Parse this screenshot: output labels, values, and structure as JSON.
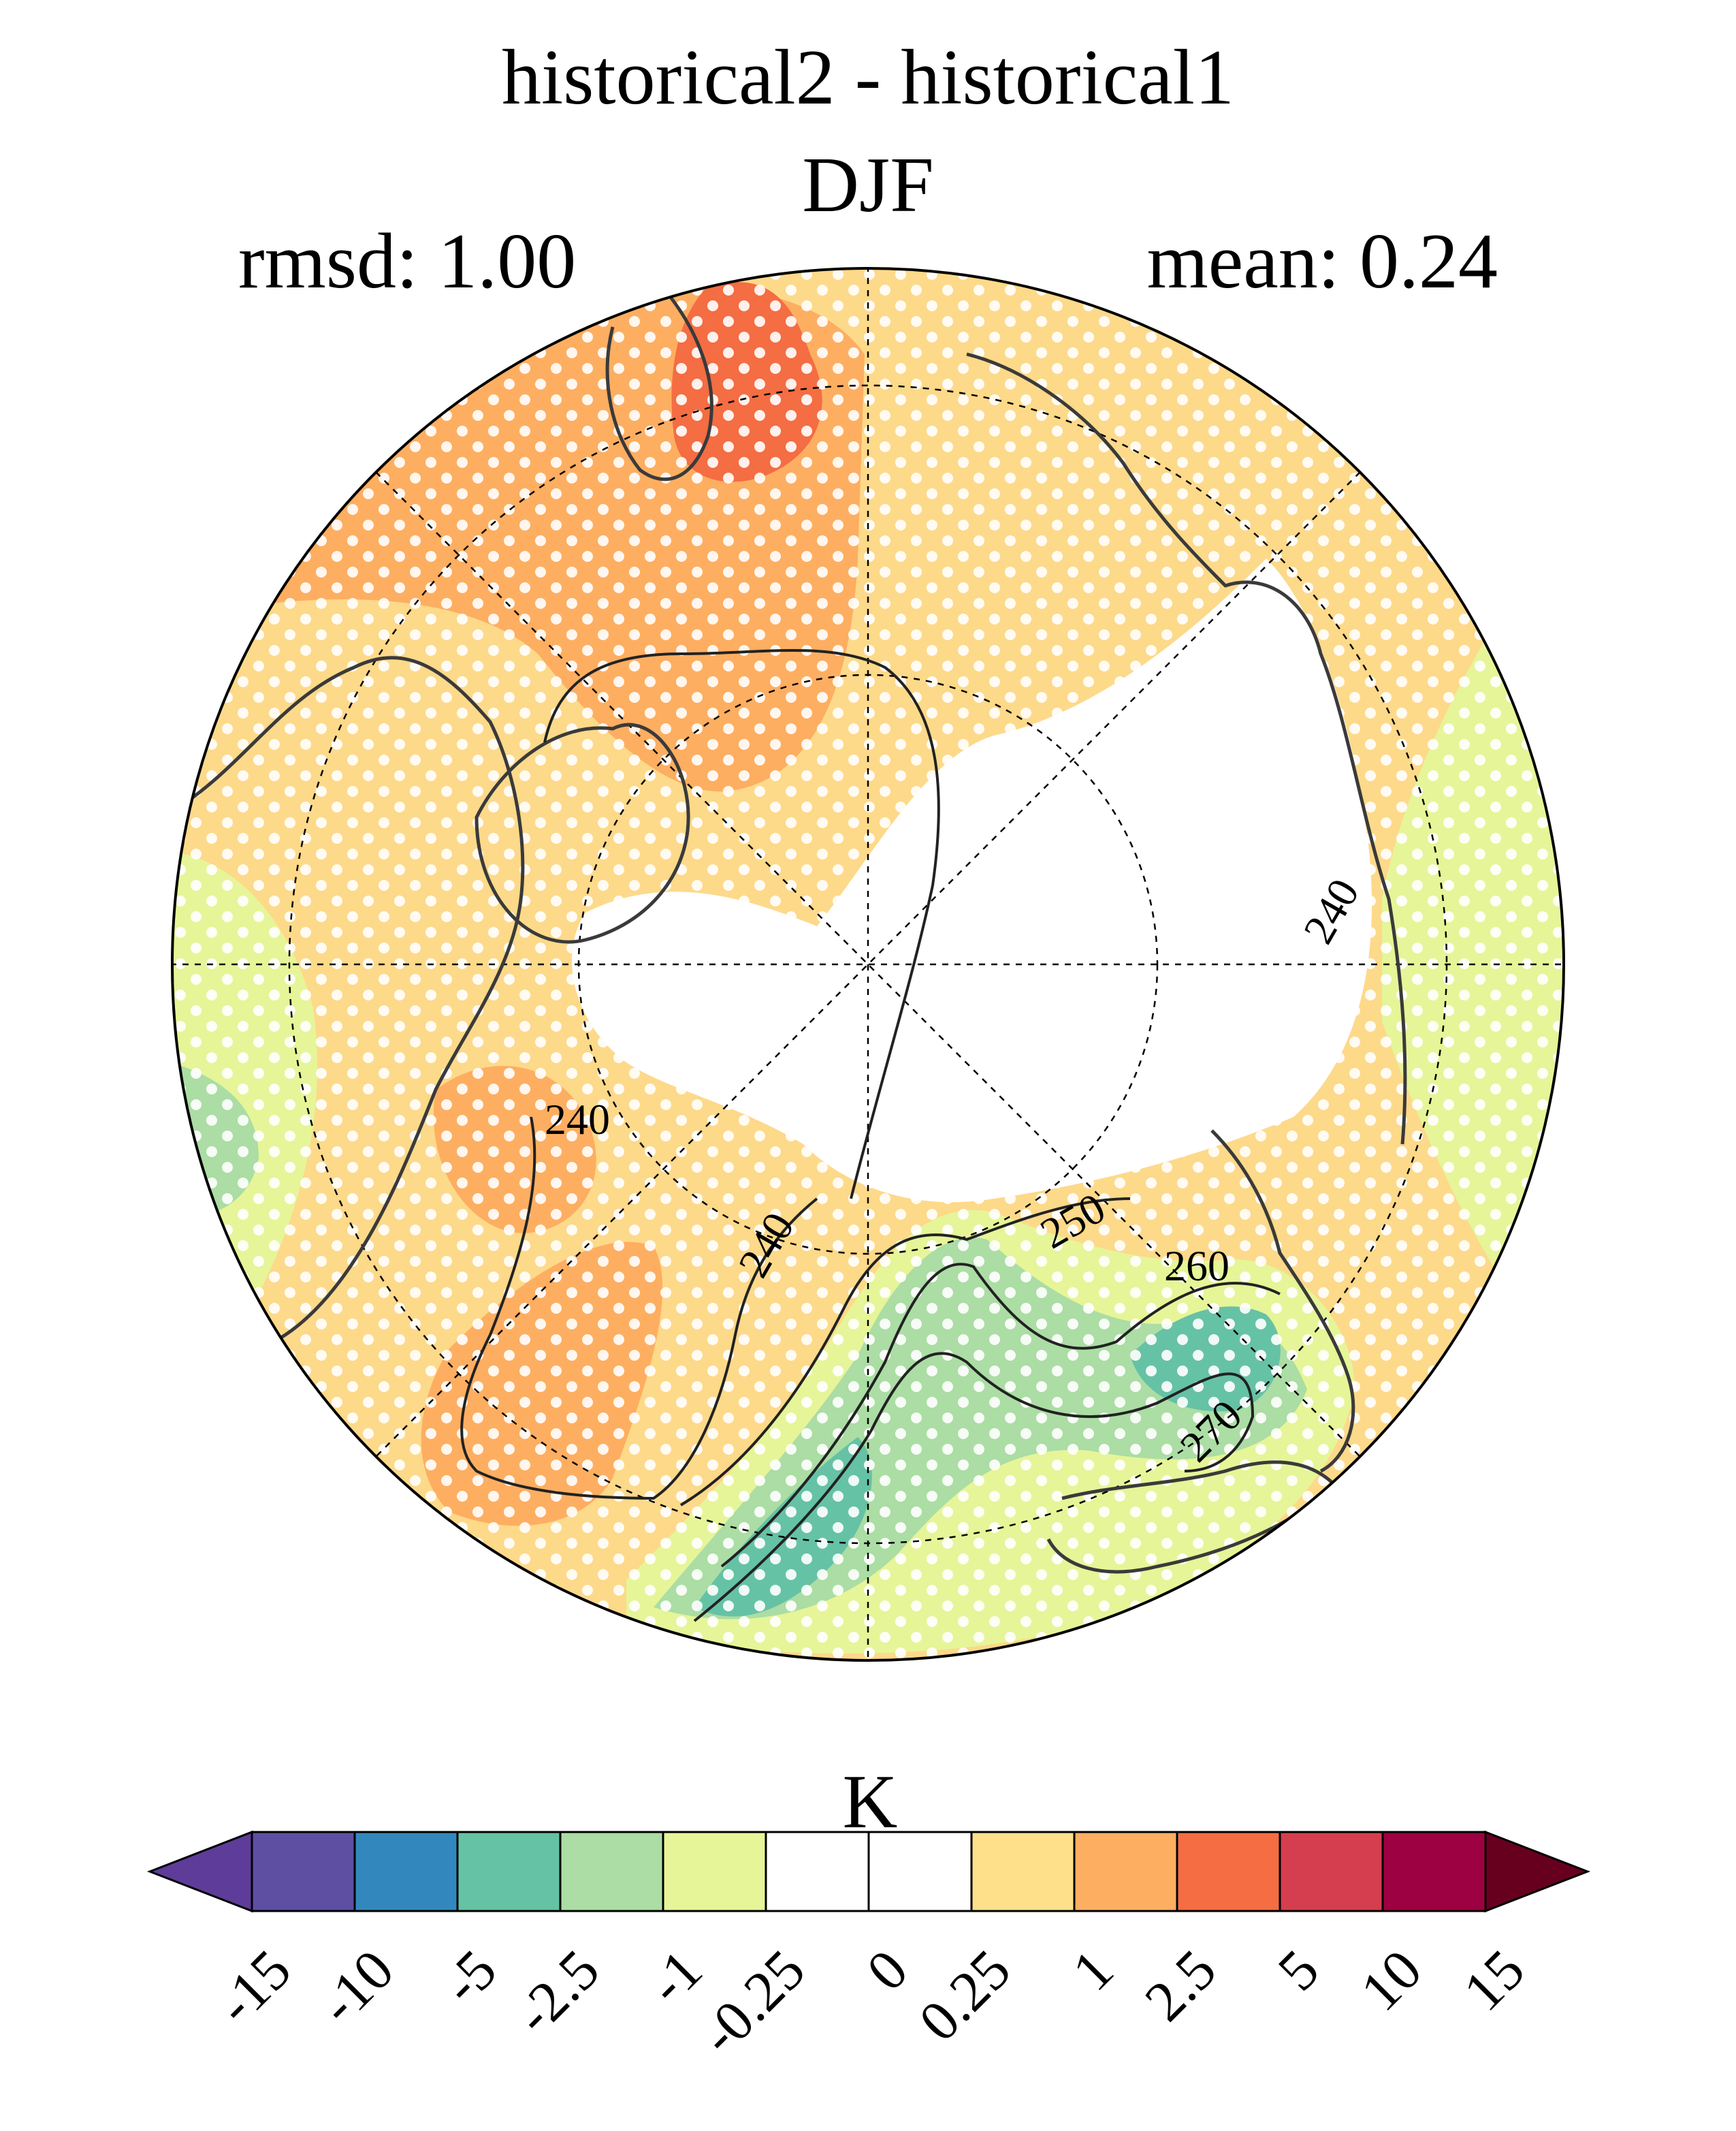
{
  "header": {
    "title_line1": "historical2 - historical1",
    "title_line2": "DJF",
    "rmsd_text": "rmsd: 1.00",
    "mean_text": "mean: 0.24"
  },
  "map": {
    "projection": "north polar stereographic",
    "graticule": "dashed",
    "stippling": "white dots",
    "contour_color": "#222222",
    "contour_labels": [
      "240",
      "240",
      "240",
      "250",
      "260",
      "270"
    ],
    "fill_regions": [
      {
        "name": "fill-region-red",
        "class": "2.5 to 5",
        "color": "#f46d43"
      },
      {
        "name": "fill-region-orange-north",
        "class": "1 to 2.5",
        "color": "#fdae61"
      },
      {
        "name": "fill-region-orange-west",
        "class": "1 to 2.5",
        "color": "#fdae61"
      },
      {
        "name": "fill-region-orange-east",
        "class": "1 to 2.5",
        "color": "#fdae61"
      },
      {
        "name": "fill-region-green-southeast",
        "class": "-5 to -2.5",
        "color": "#66c2a5"
      },
      {
        "name": "fill-region-green-south",
        "class": "-5 to -2.5",
        "color": "#66c2a5"
      },
      {
        "name": "fill-region-lightgreen-band",
        "class": "-2.5 to -1",
        "color": "#abdda4"
      },
      {
        "name": "fill-region-lightgreen-west",
        "class": "-2.5 to -1",
        "color": "#abdda4"
      },
      {
        "name": "fill-region-yellowgreen-east",
        "class": "-1 to -0.25",
        "color": "#e6f598"
      },
      {
        "name": "fill-region-yellowgreen-southwest",
        "class": "-1 to -0.25",
        "color": "#e6f598"
      },
      {
        "name": "fill-region-yellowgreen-central",
        "class": "-1 to -0.25",
        "color": "#e6f598"
      },
      {
        "name": "fill-region-white-pole",
        "class": "-0.25 to 0.25",
        "color": "#ffffff"
      }
    ]
  },
  "colorbar": {
    "unit": "K",
    "tick_labels": [
      "-15",
      "-10",
      "-5",
      "-2.5",
      "-1",
      "-0.25",
      "0",
      "0.25",
      "1",
      "2.5",
      "5",
      "10",
      "15"
    ],
    "colors": [
      "#5e3c99",
      "#5e4fa2",
      "#3288bd",
      "#66c2a5",
      "#abdda4",
      "#e6f598",
      "#ffffff",
      "#ffffff",
      "#fee08b",
      "#fdae61",
      "#f46d43",
      "#d53e4f",
      "#9e0142",
      "#67001f"
    ]
  }
}
